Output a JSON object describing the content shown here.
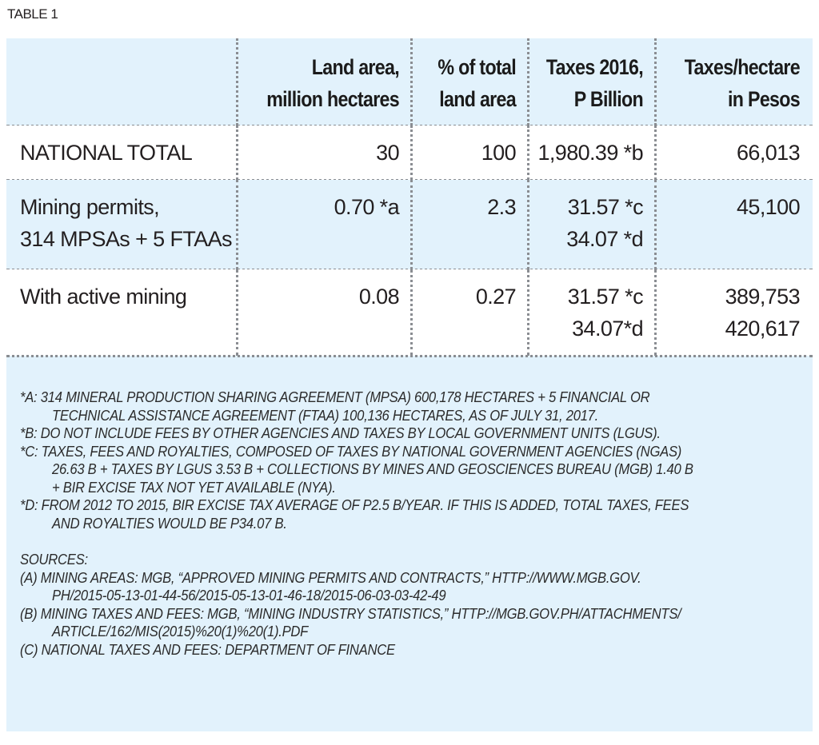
{
  "table_label": "TABLE 1",
  "columns": [
    {
      "key": "label",
      "lines": [
        "",
        ""
      ]
    },
    {
      "key": "land_area",
      "lines": [
        "Land area,",
        "million hectares"
      ]
    },
    {
      "key": "pct_total",
      "lines": [
        "% of total",
        "land area"
      ]
    },
    {
      "key": "taxes_2016",
      "lines": [
        "Taxes 2016,",
        "P Billion"
      ]
    },
    {
      "key": "taxes_per_hectare",
      "lines": [
        "Taxes/hectare",
        "in Pesos"
      ]
    }
  ],
  "rows": [
    {
      "label": [
        "NATIONAL TOTAL"
      ],
      "land_area": [
        "30"
      ],
      "pct_total": [
        "100"
      ],
      "taxes_2016": [
        "1,980.39 *b"
      ],
      "taxes_per_hectare": [
        "66,013"
      ]
    },
    {
      "label": [
        "Mining permits,",
        "314 MPSAs + 5 FTAAs"
      ],
      "land_area": [
        "0.70 *a"
      ],
      "pct_total": [
        "2.3"
      ],
      "taxes_2016": [
        "31.57 *c",
        "34.07 *d"
      ],
      "taxes_per_hectare": [
        "45,100"
      ]
    },
    {
      "label": [
        "With active mining"
      ],
      "land_area": [
        "0.08"
      ],
      "pct_total": [
        "0.27"
      ],
      "taxes_2016": [
        "31.57 *c",
        "34.07*d"
      ],
      "taxes_per_hectare": [
        "389,753",
        "420,617"
      ]
    }
  ],
  "notes": {
    "a": [
      "*A: 314 MINERAL PRODUCTION SHARING AGREEMENT (MPSA) 600,178 HECTARES + 5 FINANCIAL OR",
      "TECHNICAL ASSISTANCE AGREEMENT (FTAA) 100,136 HECTARES, AS OF JULY 31, 2017."
    ],
    "b": [
      "*B: DO NOT INCLUDE FEES BY OTHER AGENCIES AND TAXES BY LOCAL GOVERNMENT UNITS (LGUS)."
    ],
    "c": [
      "*C: TAXES, FEES AND ROYALTIES, COMPOSED OF TAXES BY NATIONAL GOVERNMENT AGENCIES (NGAS)",
      "26.63 B +  TAXES BY LGUS 3.53 B + COLLECTIONS BY MINES AND GEOSCIENCES BUREAU (MGB) 1.40 B",
      "+ BIR EXCISE TAX NOT YET AVAILABLE (NYA)."
    ],
    "d": [
      "*D: FROM 2012 TO 2015, BIR EXCISE TAX AVERAGE OF P2.5 B/YEAR. IF THIS IS ADDED, TOTAL TAXES, FEES",
      "AND ROYALTIES WOULD BE P34.07 B."
    ]
  },
  "sources": {
    "heading": "SOURCES:",
    "a": [
      "(A) MINING AREAS: MGB, “APPROVED MINING PERMITS AND CONTRACTS,” HTTP://WWW.MGB.GOV.",
      "PH/2015-05-13-01-44-56/2015-05-13-01-46-18/2015-06-03-03-42-49"
    ],
    "b": [
      "(B) MINING TAXES AND FEES: MGB, “MINING INDUSTRY STATISTICS,” HTTP://MGB.GOV.PH/ATTACHMENTS/",
      "ARTICLE/162/MIS(2015)%20(1)%20(1).PDF"
    ],
    "c": [
      "(C) NATIONAL TAXES AND FEES: DEPARTMENT OF FINANCE"
    ]
  },
  "colors": {
    "band_blue": "#e2f2fc",
    "text": "#231f20",
    "dotted_rule": "#8a8d92"
  }
}
